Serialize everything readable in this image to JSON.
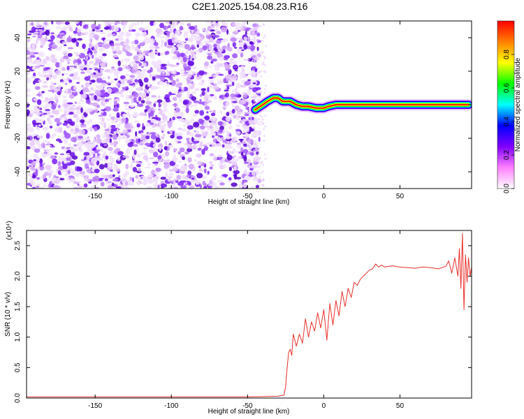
{
  "figure": {
    "title": "C2E1.2025.154.08.23.R16"
  },
  "colors": {
    "snr_line": "#e8302a",
    "axis": "#000000",
    "background": "#ffffff"
  },
  "chart_data": [
    {
      "type": "heatmap",
      "title": "C2E1.2025.154.08.23.R16",
      "xlabel": "Height of straight line (km)",
      "ylabel": "Frequency (Hz)",
      "xlim": [
        -195,
        97
      ],
      "ylim": [
        -50,
        50
      ],
      "x_ticks": [
        -150,
        -100,
        -50,
        0,
        50
      ],
      "y_ticks": [
        -40,
        -20,
        0,
        20,
        40
      ],
      "grid": false,
      "colorbar": {
        "label": "Normalized spectral amplitude",
        "range": [
          0,
          1
        ],
        "ticks": [
          "0.0",
          "0.2",
          "0.4",
          "0.6",
          "0.8"
        ],
        "colormap": [
          "#ffffff",
          "#ff80ff",
          "#8000ff",
          "#0000ff",
          "#00ffff",
          "#00ff00",
          "#ffff00",
          "#ff8000",
          "#ff0000"
        ]
      },
      "regions": [
        {
          "x_range": [
            -195,
            -42
          ],
          "freq_range": [
            -50,
            50
          ],
          "amplitude": "low (0.0-0.2), scattered noise"
        },
        {
          "x_range": [
            -42,
            97
          ],
          "freq_range": [
            -50,
            50
          ],
          "amplitude": "0.0 except signal band"
        }
      ],
      "signal_ridge": {
        "x": [
          -45,
          -40,
          -37,
          -33,
          -30,
          -27,
          -22,
          -18,
          -14,
          -10,
          -5,
          0,
          3,
          8,
          20,
          40,
          60,
          80,
          95
        ],
        "frequency": [
          -3,
          0,
          2,
          4,
          4,
          2,
          2,
          0,
          -1,
          -1,
          -2,
          -2,
          -1,
          0,
          0,
          0,
          0,
          0,
          0
        ],
        "peak_amplitude": 1.0
      }
    },
    {
      "type": "line",
      "xlabel": "Height of straight line (km)",
      "ylabel": "SNR (10 * v/v)",
      "y_multiplier": "(x10⁴)",
      "xlim": [
        -195,
        97
      ],
      "ylim": [
        0,
        2.75
      ],
      "x_ticks": [
        -150,
        -100,
        -50,
        0,
        50
      ],
      "y_ticks": [
        "0.0",
        "0.5",
        "1.0",
        "1.5",
        "2.0",
        "2.5"
      ],
      "grid": false,
      "series": [
        {
          "color": "#e8302a",
          "x": [
            -195,
            -150,
            -100,
            -50,
            -30,
            -26,
            -25,
            -24,
            -23,
            -22,
            -21,
            -20,
            -18,
            -16,
            -14,
            -12,
            -10,
            -8,
            -6,
            -4,
            -2,
            0,
            2,
            4,
            6,
            8,
            10,
            12,
            14,
            16,
            18,
            20,
            22,
            24,
            26,
            28,
            30,
            32,
            34,
            36,
            38,
            40,
            45,
            50,
            55,
            60,
            65,
            70,
            75,
            80,
            82,
            84,
            86,
            88,
            89,
            90,
            91,
            92,
            93,
            94,
            95,
            96,
            97
          ],
          "values": [
            0.02,
            0.02,
            0.02,
            0.02,
            0.03,
            0.05,
            0.2,
            0.5,
            0.75,
            0.8,
            0.7,
            1.05,
            0.85,
            1.05,
            0.9,
            1.3,
            1.0,
            1.25,
            1.1,
            1.4,
            1.15,
            1.45,
            0.95,
            1.55,
            1.2,
            1.6,
            1.35,
            1.75,
            1.5,
            1.8,
            1.65,
            1.9,
            1.85,
            1.95,
            2.0,
            2.05,
            2.1,
            2.12,
            2.2,
            2.15,
            2.18,
            2.15,
            2.17,
            2.15,
            2.14,
            2.13,
            2.15,
            2.14,
            2.12,
            2.16,
            2.25,
            2.05,
            2.3,
            2.0,
            2.45,
            1.8,
            2.7,
            1.45,
            2.35,
            1.9,
            2.3,
            2.0,
            2.15
          ]
        }
      ]
    }
  ]
}
